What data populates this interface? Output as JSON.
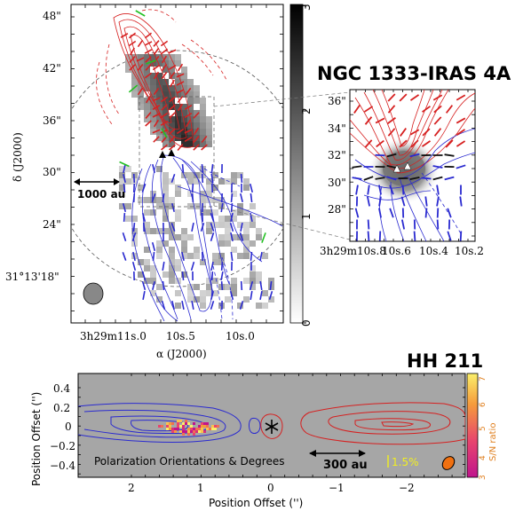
{
  "top_panel": {
    "title": "NGC 1333-IRAS 4A",
    "main_map": {
      "x_axis_label": "α (J2000)",
      "y_axis_label": "δ (J2000)",
      "x_ticks": [
        "3h29m11s.0",
        "10s.5",
        "10s.0"
      ],
      "y_ticks": [
        "48\"",
        "42\"",
        "36\"",
        "30\"",
        "24\"",
        "31°13'18\""
      ],
      "scale_bar_label": "1000 au"
    },
    "colorbar": {
      "ticks": [
        "0",
        "1",
        "2",
        "3"
      ]
    },
    "inset_map": {
      "x_ticks": [
        "3h29m10s.8",
        "10s.6",
        "10s.4",
        "10s.2"
      ],
      "y_ticks": [
        "36\"",
        "34\"",
        "32\"",
        "30\"",
        "28\""
      ]
    }
  },
  "bottom_panel": {
    "title": "HH 211",
    "x_axis_label": "Position Offset ('')",
    "y_axis_label": "Position Offset ('')",
    "x_ticks": [
      "2",
      "1",
      "0",
      "−1",
      "−2"
    ],
    "y_ticks": [
      "0.4",
      "0.2",
      "0",
      "−0.2",
      "−0.4"
    ],
    "overlay_text": "Polarization Orientations & Degrees",
    "scale_bar_label": "300 au",
    "polarization_scale_label": "1.5%",
    "colorbar": {
      "label": "S/N ratio",
      "ticks": [
        "3",
        "4",
        "5",
        "6",
        "7"
      ]
    }
  },
  "colors": {
    "redshifted": "#d62020",
    "blueshifted": "#2a2ad0",
    "green_vectors": "#22c022",
    "black_vectors": "#111111",
    "panel_gray": "#a6a6a6",
    "scale_yellow": "#f2ef20",
    "beam_orange": "#f07010"
  }
}
